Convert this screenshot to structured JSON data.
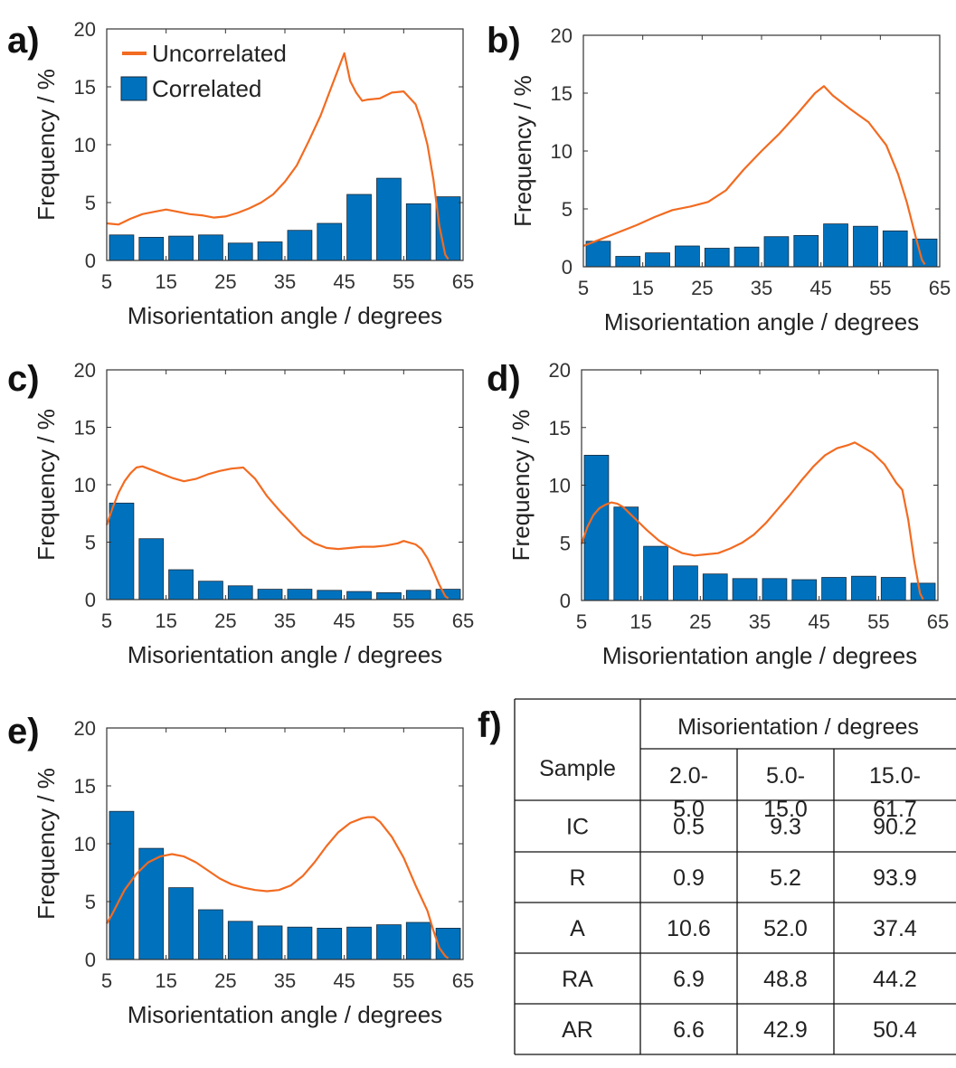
{
  "panels": [
    "a)",
    "b)",
    "c)",
    "d)",
    "e)",
    "f)"
  ],
  "colors": {
    "bar": "#0072BD",
    "line": "#F26B21"
  },
  "legend": {
    "line": "Uncorrelated",
    "bar": "Correlated"
  },
  "chart_data": [
    {
      "type": "bar",
      "panel": "a)",
      "xlabel": "Misorientation angle / degrees",
      "ylabel": "Frequency / %",
      "xlim": [
        5,
        65
      ],
      "ylim": [
        0,
        20
      ],
      "xticks": [
        5,
        15,
        25,
        35,
        45,
        55,
        65
      ],
      "yticks": [
        0,
        5,
        10,
        15,
        20
      ],
      "series": [
        {
          "name": "Correlated",
          "type": "bar",
          "x": [
            7.5,
            12.5,
            17.5,
            22.5,
            27.5,
            32.5,
            37.5,
            42.5,
            47.5,
            52.5,
            57.5,
            62.5
          ],
          "values": [
            2.2,
            2.0,
            2.1,
            2.2,
            1.5,
            1.6,
            2.6,
            3.2,
            5.7,
            7.1,
            4.9,
            5.5
          ]
        },
        {
          "name": "Uncorrelated",
          "type": "line",
          "x": [
            5,
            7,
            9,
            11,
            13,
            15,
            17,
            19,
            21,
            23,
            25,
            27,
            29,
            31,
            33,
            35,
            37,
            39,
            41,
            43,
            45,
            46,
            47,
            48,
            49,
            51,
            53,
            55,
            57,
            58,
            59,
            60,
            61,
            62,
            62.5
          ],
          "y": [
            3.2,
            3.1,
            3.6,
            4.0,
            4.2,
            4.4,
            4.2,
            4.0,
            3.9,
            3.7,
            3.8,
            4.1,
            4.5,
            5.0,
            5.7,
            6.8,
            8.2,
            10.3,
            12.5,
            15.2,
            17.9,
            15.5,
            14.5,
            13.8,
            13.9,
            14.0,
            14.5,
            14.6,
            13.5,
            12.0,
            10.0,
            7.0,
            3.0,
            0.5,
            0.1
          ]
        }
      ]
    },
    {
      "type": "bar",
      "panel": "b)",
      "xlabel": "Misorientation angle / degrees",
      "ylabel": "Frequency / %",
      "xlim": [
        5,
        65
      ],
      "ylim": [
        0,
        20
      ],
      "xticks": [
        5,
        15,
        25,
        35,
        45,
        55,
        65
      ],
      "yticks": [
        0,
        5,
        10,
        15,
        20
      ],
      "series": [
        {
          "name": "Correlated",
          "type": "bar",
          "x": [
            7.5,
            12.5,
            17.5,
            22.5,
            27.5,
            32.5,
            37.5,
            42.5,
            47.5,
            52.5,
            57.5,
            62.5
          ],
          "values": [
            2.2,
            0.9,
            1.2,
            1.8,
            1.6,
            1.7,
            2.6,
            2.7,
            3.7,
            3.5,
            3.1,
            2.4
          ]
        },
        {
          "name": "Uncorrelated",
          "type": "line",
          "x": [
            5,
            8,
            11,
            14,
            17,
            20,
            23,
            26,
            29,
            32,
            35,
            38,
            41,
            44,
            45.5,
            47,
            50,
            53,
            56,
            58,
            59.5,
            61,
            62,
            62.5
          ],
          "y": [
            1.8,
            2.4,
            3.0,
            3.6,
            4.3,
            4.9,
            5.2,
            5.6,
            6.6,
            8.4,
            10.0,
            11.5,
            13.2,
            15.0,
            15.6,
            14.8,
            13.6,
            12.5,
            10.5,
            8.0,
            5.5,
            2.5,
            0.6,
            0.2
          ]
        }
      ]
    },
    {
      "type": "bar",
      "panel": "c)",
      "xlabel": "Misorientation angle / degrees",
      "ylabel": "Frequency / %",
      "xlim": [
        5,
        65
      ],
      "ylim": [
        0,
        20
      ],
      "xticks": [
        5,
        15,
        25,
        35,
        45,
        55,
        65
      ],
      "yticks": [
        0,
        5,
        10,
        15,
        20
      ],
      "series": [
        {
          "name": "Correlated",
          "type": "bar",
          "x": [
            7.5,
            12.5,
            17.5,
            22.5,
            27.5,
            32.5,
            37.5,
            42.5,
            47.5,
            52.5,
            57.5,
            62.5
          ],
          "values": [
            8.4,
            5.3,
            2.6,
            1.6,
            1.2,
            0.9,
            0.9,
            0.8,
            0.7,
            0.6,
            0.8,
            0.9
          ]
        },
        {
          "name": "Uncorrelated",
          "type": "line",
          "x": [
            5,
            6,
            7,
            8,
            9,
            10,
            11,
            12,
            14,
            16,
            18,
            20,
            22,
            24,
            26,
            28,
            30,
            32,
            34,
            36,
            38,
            40,
            42,
            44,
            46,
            48,
            50,
            52,
            54,
            55,
            57,
            58,
            59,
            60,
            61,
            62,
            62.5
          ],
          "y": [
            6.5,
            8.0,
            9.3,
            10.3,
            11.0,
            11.5,
            11.6,
            11.4,
            11.0,
            10.6,
            10.3,
            10.5,
            10.9,
            11.2,
            11.4,
            11.5,
            10.5,
            9.0,
            7.8,
            6.7,
            5.6,
            4.9,
            4.5,
            4.4,
            4.5,
            4.6,
            4.6,
            4.7,
            4.9,
            5.1,
            4.8,
            4.4,
            3.6,
            2.5,
            1.3,
            0.3,
            0.1
          ]
        }
      ]
    },
    {
      "type": "bar",
      "panel": "d)",
      "xlabel": "Misorientation angle / degrees",
      "ylabel": "Frequency / %",
      "xlim": [
        5,
        65
      ],
      "ylim": [
        0,
        20
      ],
      "xticks": [
        5,
        15,
        25,
        35,
        45,
        55,
        65
      ],
      "yticks": [
        0,
        5,
        10,
        15,
        20
      ],
      "series": [
        {
          "name": "Correlated",
          "type": "bar",
          "x": [
            7.5,
            12.5,
            17.5,
            22.5,
            27.5,
            32.5,
            37.5,
            42.5,
            47.5,
            52.5,
            57.5,
            62.5
          ],
          "values": [
            12.6,
            8.1,
            4.7,
            3.0,
            2.3,
            1.9,
            1.9,
            1.8,
            2.0,
            2.1,
            2.0,
            1.5
          ]
        },
        {
          "name": "Uncorrelated",
          "type": "line",
          "x": [
            5,
            6,
            7,
            8,
            9,
            10,
            11,
            12,
            14,
            16,
            18,
            20,
            22,
            24,
            26,
            28,
            30,
            32,
            34,
            36,
            38,
            40,
            42,
            44,
            46,
            48,
            50,
            51,
            52,
            54,
            56,
            57,
            58,
            59,
            60,
            61,
            62,
            62.5
          ],
          "y": [
            4.9,
            6.4,
            7.4,
            8.0,
            8.3,
            8.5,
            8.4,
            8.1,
            7.1,
            6.1,
            5.2,
            4.6,
            4.1,
            3.9,
            4.0,
            4.1,
            4.5,
            5.0,
            5.7,
            6.7,
            7.9,
            9.1,
            10.4,
            11.6,
            12.6,
            13.2,
            13.5,
            13.7,
            13.4,
            12.8,
            11.8,
            11.0,
            10.2,
            9.6,
            7.0,
            3.5,
            0.6,
            0.1
          ]
        }
      ]
    },
    {
      "type": "bar",
      "panel": "e)",
      "xlabel": "Misorientation angle / degrees",
      "ylabel": "Frequency / %",
      "xlim": [
        5,
        65
      ],
      "ylim": [
        0,
        20
      ],
      "xticks": [
        5,
        15,
        25,
        35,
        45,
        55,
        65
      ],
      "yticks": [
        0,
        5,
        10,
        15,
        20
      ],
      "series": [
        {
          "name": "Correlated",
          "type": "bar",
          "x": [
            7.5,
            12.5,
            17.5,
            22.5,
            27.5,
            32.5,
            37.5,
            42.5,
            47.5,
            52.5,
            57.5,
            62.5
          ],
          "values": [
            12.8,
            9.6,
            6.2,
            4.3,
            3.3,
            2.9,
            2.8,
            2.7,
            2.8,
            3.0,
            3.2,
            2.7
          ]
        },
        {
          "name": "Uncorrelated",
          "type": "line",
          "x": [
            5,
            6,
            7,
            8,
            10,
            12,
            14,
            16,
            18,
            20,
            22,
            24,
            26,
            28,
            30,
            32,
            34,
            36,
            38,
            40,
            42,
            44,
            46,
            48,
            49,
            50,
            51,
            53,
            55,
            57,
            59,
            60,
            61,
            62,
            62.5
          ],
          "y": [
            3.1,
            4.0,
            5.0,
            6.0,
            7.4,
            8.4,
            8.9,
            9.1,
            8.9,
            8.4,
            7.7,
            7.0,
            6.5,
            6.2,
            6.0,
            5.9,
            6.0,
            6.4,
            7.2,
            8.4,
            9.8,
            11.0,
            11.8,
            12.2,
            12.3,
            12.3,
            11.9,
            10.6,
            8.8,
            6.4,
            4.2,
            2.5,
            1.0,
            0.3,
            0.1
          ]
        }
      ]
    },
    {
      "type": "table",
      "panel": "f)",
      "header": {
        "sample": "Sample",
        "group": "Misorientation / degrees",
        "ranges": [
          [
            "2.0-",
            "5.0"
          ],
          [
            "5.0-",
            "15.0"
          ],
          [
            "15.0-",
            "61.7"
          ]
        ]
      },
      "rows": [
        [
          "IC",
          "0.5",
          "9.3",
          "90.2"
        ],
        [
          "R",
          "0.9",
          "5.2",
          "93.9"
        ],
        [
          "A",
          "10.6",
          "52.0",
          "37.4"
        ],
        [
          "RA",
          "6.9",
          "48.8",
          "44.2"
        ],
        [
          "AR",
          "6.6",
          "42.9",
          "50.4"
        ]
      ]
    }
  ]
}
